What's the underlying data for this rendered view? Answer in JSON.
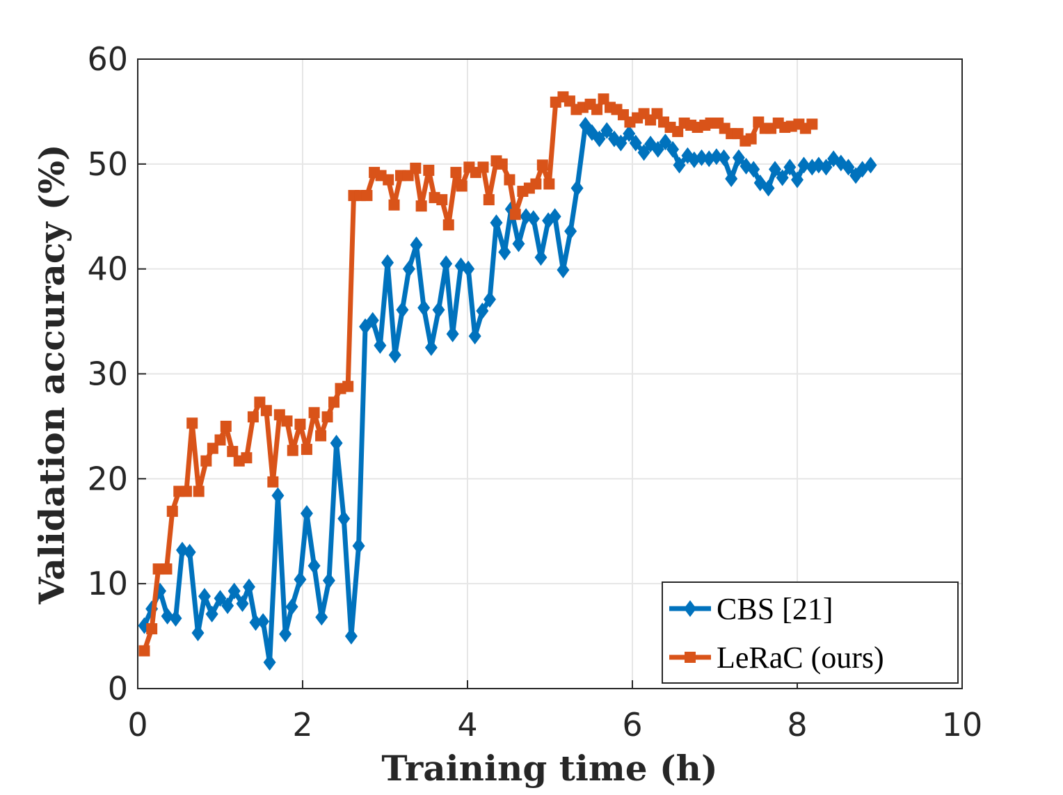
{
  "chart_data": {
    "type": "line",
    "xlabel": "Training time (h)",
    "ylabel": "Validation accuracy (%)",
    "xlim": [
      0,
      10
    ],
    "ylim": [
      0,
      60
    ],
    "xticks": [
      0,
      2,
      4,
      6,
      8,
      10
    ],
    "yticks": [
      0,
      10,
      20,
      30,
      40,
      50,
      60
    ],
    "grid": true,
    "legend": "lower right",
    "series": [
      {
        "name": "CBS [21]",
        "color": "#0072bd",
        "marker": "diamond",
        "x": [
          0.08,
          0.17,
          0.27,
          0.36,
          0.46,
          0.54,
          0.63,
          0.73,
          0.81,
          0.9,
          1.0,
          1.09,
          1.17,
          1.27,
          1.35,
          1.43,
          1.52,
          1.6,
          1.7,
          1.79,
          1.87,
          1.97,
          2.05,
          2.14,
          2.23,
          2.32,
          2.41,
          2.5,
          2.59,
          2.68,
          2.76,
          2.85,
          2.94,
          3.03,
          3.12,
          3.21,
          3.29,
          3.38,
          3.47,
          3.56,
          3.65,
          3.74,
          3.82,
          3.92,
          4.01,
          4.09,
          4.18,
          4.27,
          4.35,
          4.45,
          4.53,
          4.62,
          4.71,
          4.8,
          4.89,
          4.98,
          5.06,
          5.16,
          5.25,
          5.33,
          5.43,
          5.51,
          5.6,
          5.69,
          5.78,
          5.86,
          5.96,
          6.04,
          6.14,
          6.22,
          6.31,
          6.4,
          6.49,
          6.57,
          6.67,
          6.75,
          6.84,
          6.93,
          7.02,
          7.11,
          7.2,
          7.29,
          7.38,
          7.47,
          7.55,
          7.65,
          7.73,
          7.82,
          7.91,
          8.0,
          8.08,
          8.18,
          8.26,
          8.35,
          8.44,
          8.53,
          8.62,
          8.71,
          8.79,
          8.89
        ],
        "values": [
          6.0,
          7.6,
          9.3,
          6.9,
          6.7,
          13.2,
          13.0,
          5.3,
          8.8,
          7.1,
          8.6,
          7.9,
          9.3,
          8.1,
          9.7,
          6.3,
          6.4,
          2.5,
          18.4,
          5.2,
          7.8,
          10.4,
          16.7,
          11.7,
          6.8,
          10.3,
          23.4,
          16.2,
          5.0,
          13.6,
          34.5,
          35.1,
          32.7,
          40.6,
          31.8,
          36.1,
          40.0,
          42.3,
          36.3,
          32.5,
          36.1,
          40.5,
          33.8,
          40.3,
          40.0,
          33.6,
          36.0,
          37.1,
          44.4,
          41.6,
          45.7,
          42.4,
          45.0,
          44.8,
          41.1,
          44.6,
          45.0,
          39.9,
          43.6,
          47.7,
          53.7,
          53.0,
          52.4,
          53.2,
          52.4,
          52.0,
          52.9,
          52.0,
          51.1,
          51.9,
          51.4,
          52.1,
          51.4,
          49.9,
          50.8,
          50.4,
          50.6,
          50.5,
          50.7,
          50.6,
          48.6,
          50.6,
          49.8,
          49.5,
          48.2,
          47.7,
          49.5,
          48.7,
          49.7,
          48.5,
          49.9,
          49.7,
          49.9,
          49.7,
          50.5,
          50.1,
          49.7,
          48.9,
          49.5,
          49.9
        ]
      },
      {
        "name": "LeRaC (ours)",
        "color": "#d95319",
        "marker": "square",
        "x": [
          0.08,
          0.17,
          0.25,
          0.35,
          0.42,
          0.5,
          0.59,
          0.66,
          0.74,
          0.83,
          0.91,
          1.0,
          1.07,
          1.15,
          1.23,
          1.32,
          1.4,
          1.48,
          1.56,
          1.64,
          1.72,
          1.81,
          1.88,
          1.97,
          2.05,
          2.14,
          2.22,
          2.3,
          2.38,
          2.46,
          2.55,
          2.62,
          2.7,
          2.78,
          2.87,
          2.95,
          3.04,
          3.11,
          3.19,
          3.28,
          3.37,
          3.44,
          3.53,
          3.6,
          3.69,
          3.77,
          3.86,
          3.93,
          4.02,
          4.1,
          4.19,
          4.26,
          4.35,
          4.42,
          4.51,
          4.58,
          4.67,
          4.75,
          4.83,
          4.91,
          4.99,
          5.07,
          5.16,
          5.24,
          5.32,
          5.4,
          5.49,
          5.57,
          5.65,
          5.73,
          5.81,
          5.89,
          5.97,
          6.06,
          6.14,
          6.22,
          6.3,
          6.38,
          6.46,
          6.55,
          6.63,
          6.71,
          6.79,
          6.88,
          6.95,
          7.04,
          7.12,
          7.2,
          7.28,
          7.37,
          7.44,
          7.53,
          7.61,
          7.68,
          7.77,
          7.85,
          7.93,
          8.02,
          8.1,
          8.18
        ],
        "values": [
          3.6,
          5.7,
          11.4,
          11.4,
          16.9,
          18.8,
          18.8,
          25.3,
          18.8,
          21.7,
          22.9,
          23.7,
          25.0,
          22.6,
          21.7,
          22.0,
          25.9,
          27.3,
          26.5,
          19.7,
          26.1,
          25.5,
          22.7,
          25.2,
          22.8,
          26.3,
          24.1,
          25.9,
          27.3,
          28.6,
          28.8,
          47.0,
          47.0,
          47.0,
          49.2,
          48.9,
          48.5,
          46.1,
          48.9,
          48.9,
          49.6,
          46.0,
          49.4,
          46.8,
          46.6,
          44.2,
          49.2,
          47.9,
          49.7,
          49.2,
          49.7,
          46.6,
          50.3,
          50.0,
          48.5,
          45.2,
          47.4,
          47.7,
          48.1,
          49.9,
          48.1,
          55.9,
          56.4,
          56.0,
          55.2,
          55.4,
          55.7,
          55.2,
          56.2,
          55.4,
          55.2,
          54.7,
          54.0,
          54.4,
          54.8,
          54.2,
          54.8,
          54.0,
          53.5,
          53.1,
          53.9,
          53.7,
          53.5,
          53.7,
          53.9,
          53.9,
          53.4,
          52.9,
          52.9,
          52.2,
          52.4,
          54.0,
          53.4,
          53.4,
          53.9,
          53.5,
          53.6,
          53.8,
          53.4,
          53.8
        ]
      }
    ]
  }
}
